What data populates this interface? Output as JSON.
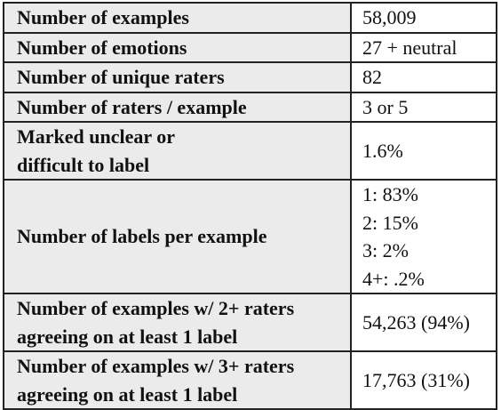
{
  "table": {
    "rows": [
      {
        "label": [
          "Number of examples"
        ],
        "value": [
          "58,009"
        ]
      },
      {
        "label": [
          "Number of emotions"
        ],
        "value": [
          "27 + neutral"
        ]
      },
      {
        "label": [
          "Number of unique raters"
        ],
        "value": [
          "82"
        ]
      },
      {
        "label": [
          "Number of raters / example"
        ],
        "value": [
          "3 or 5"
        ]
      },
      {
        "label": [
          "Marked unclear or",
          "difficult to label"
        ],
        "value": [
          "1.6%"
        ]
      },
      {
        "label": [
          "Number of labels per example"
        ],
        "value": [
          "1: 83%",
          "2: 15%",
          "3: 2%",
          "4+: .2%"
        ]
      },
      {
        "label": [
          "Number of examples w/ 2+ raters",
          "agreeing on at least 1 label"
        ],
        "value": [
          "54,263 (94%)"
        ]
      },
      {
        "label": [
          "Number of examples w/ 3+ raters",
          "agreeing on at least 1 label"
        ],
        "value": [
          "17,763 (31%)"
        ]
      }
    ]
  }
}
